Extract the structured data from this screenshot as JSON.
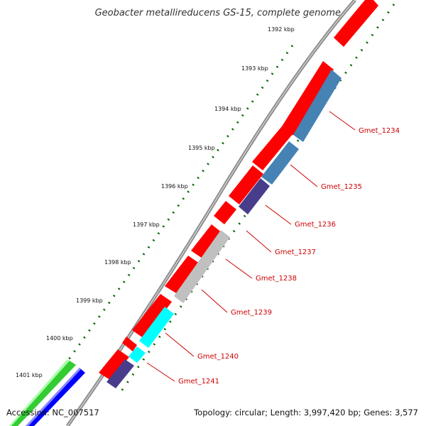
{
  "title": "Geobacter metallireducens GS-15, complete genome",
  "ticks": [
    "1392 kbp",
    "1393 kbp",
    "1394 kbp",
    "1395 kbp",
    "1396 kbp",
    "1397 kbp",
    "1398 kbp",
    "1399 kbp",
    "1400 kbp",
    "1401 kbp"
  ],
  "genes": [
    "Gmet_1234",
    "Gmet_1235",
    "Gmet_1236",
    "Gmet_1237",
    "Gmet_1238",
    "Gmet_1239",
    "Gmet_1240",
    "Gmet_1241"
  ],
  "footer": {
    "accession": "Accession: NC_007517",
    "stats": "Topology: circular; Length: 3,997,420 bp; Genes: 3,577"
  },
  "colors": {
    "forward_cds": "#ff0000",
    "reverse_cds_steelblue": "#4682b4",
    "reverse_cds_darkslate": "#483d8b",
    "reverse_cds_grey": "#c0c0c0",
    "reverse_cds_cyan": "#00ffff",
    "outer_green": "#33cc33",
    "outer_blue": "#0000ff",
    "backbone": "#888888",
    "tick_dots": "#006600",
    "label_color": "#cc0000"
  }
}
